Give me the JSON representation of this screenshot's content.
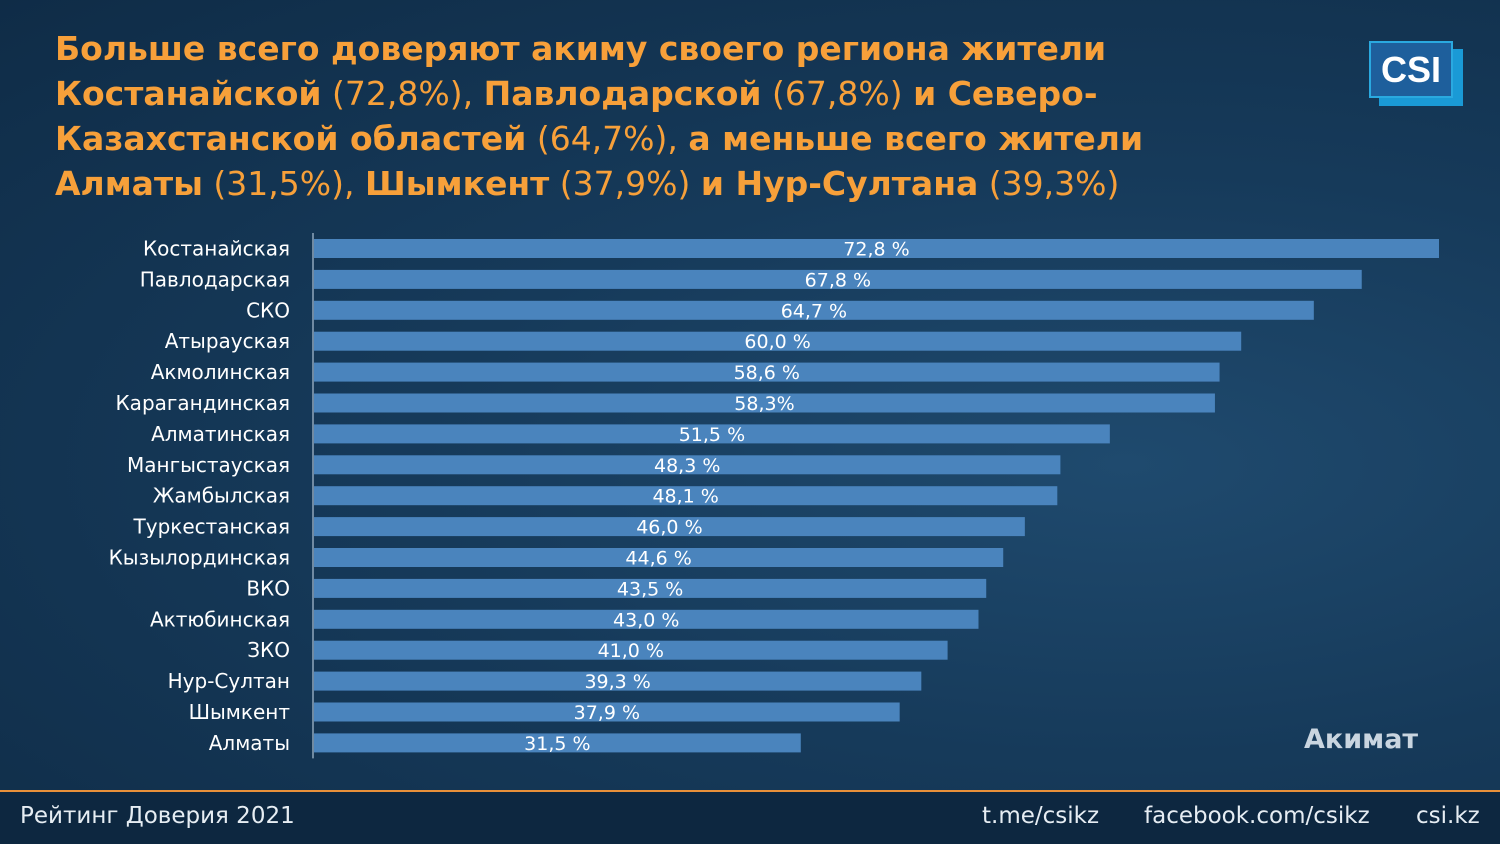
{
  "title": {
    "segments": [
      {
        "text": "Больше всего доверяют акиму своего региона жители Костанайской",
        "bold": true
      },
      {
        "text": " (72,8%), ",
        "bold": false
      },
      {
        "text": "Павлодарской",
        "bold": true
      },
      {
        "text": " (67,8%) ",
        "bold": false
      },
      {
        "text": "и Северо-Казахстанской областей",
        "bold": true
      },
      {
        "text": " (64,7%), ",
        "bold": false
      },
      {
        "text": "а меньше всего жители Алматы",
        "bold": true
      },
      {
        "text": " (31,5%), ",
        "bold": false
      },
      {
        "text": "Шымкент",
        "bold": true
      },
      {
        "text": " (37,9%) ",
        "bold": false
      },
      {
        "text": "и Нур-Султана",
        "bold": true
      },
      {
        "text": " (39,3%)",
        "bold": false
      }
    ]
  },
  "logo": {
    "text": "CSI"
  },
  "colors": {
    "bar": "#4a84bd",
    "title": "#f7a03a",
    "accent_line": "#e8903a"
  },
  "chart_data": {
    "type": "bar",
    "orientation": "horizontal",
    "categories": [
      "Костанайская",
      "Павлодарская",
      "СКО",
      "Атырауская",
      "Акмолинская",
      "Карагандинская",
      "Алматинская",
      "Мангыстауская",
      "Жамбылская",
      "Туркестанская",
      "Кызылординская",
      "ВКО",
      "Актюбинская",
      "ЗКО",
      "Нур-Султан",
      "Шымкент",
      "Алматы"
    ],
    "series": [
      {
        "name": "Акимат",
        "values": [
          72.8,
          67.8,
          64.7,
          60.0,
          58.6,
          58.3,
          51.5,
          48.3,
          48.1,
          46.0,
          44.6,
          43.5,
          43.0,
          41.0,
          39.3,
          37.9,
          31.5
        ],
        "data_labels": [
          "72,8 %",
          "67,8 %",
          "64,7 %",
          "60,0 %",
          "58,6 %",
          "58,3%",
          "51,5 %",
          "48,3 %",
          "48,1 %",
          "46,0 %",
          "44,6 %",
          "43,5 %",
          "43,0 %",
          "41,0 %",
          "39,3 %",
          "37,9 %",
          "31,5 %"
        ]
      }
    ],
    "xlim": [
      0,
      72.8
    ],
    "grid": false,
    "legend": "bottom-right"
  },
  "footer": {
    "left": "Рейтинг Доверия 2021",
    "links": [
      "t.me/csikz",
      "facebook.com/csikz",
      "csi.kz"
    ]
  }
}
